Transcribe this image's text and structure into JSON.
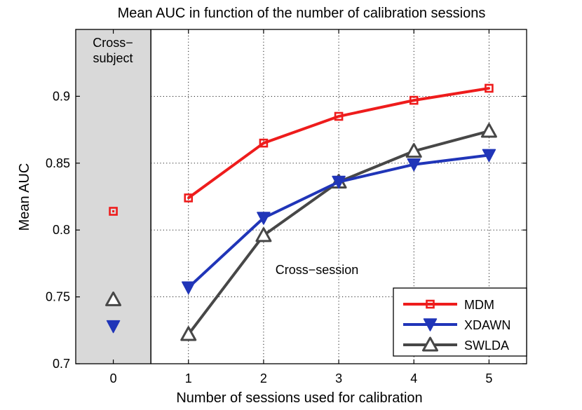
{
  "chart_data": {
    "type": "line",
    "title": "Mean AUC in function of the number of calibration sessions",
    "xlabel": "Number of sessions used for calibration",
    "ylabel": "Mean AUC",
    "xlim": [
      -0.5,
      5.5
    ],
    "ylim": [
      0.7,
      0.95
    ],
    "xticks": [
      0,
      1,
      2,
      3,
      4,
      5
    ],
    "yticks": [
      0.7,
      0.75,
      0.8,
      0.85,
      0.9
    ],
    "ytick_labels": [
      "0.7",
      "0.75",
      "0.8",
      "0.85",
      "0.9"
    ],
    "grid": true,
    "legend_position": "bottom-right",
    "cross_subject": {
      "label_line1": "Cross−",
      "label_line2": "subject",
      "x_range": [
        -0.5,
        0.5
      ],
      "shade_color": "#d9d9d9",
      "points": [
        {
          "series": "MDM",
          "x": 0,
          "y": 0.814
        },
        {
          "series": "SWLDA",
          "x": 0,
          "y": 0.748
        },
        {
          "series": "XDAWN",
          "x": 0,
          "y": 0.728
        }
      ]
    },
    "cross_session_label": "Cross−session",
    "series": [
      {
        "name": "MDM",
        "color": "#ee1c1c",
        "marker": "square",
        "x": [
          1,
          2,
          3,
          4,
          5
        ],
        "values": [
          0.824,
          0.865,
          0.885,
          0.897,
          0.906
        ]
      },
      {
        "name": "XDAWN",
        "color": "#2035b8",
        "marker": "triangle-down",
        "x": [
          1,
          2,
          3,
          4,
          5
        ],
        "values": [
          0.757,
          0.809,
          0.836,
          0.849,
          0.856
        ]
      },
      {
        "name": "SWLDA",
        "color": "#474747",
        "marker": "triangle-up",
        "x": [
          1,
          2,
          3,
          4,
          5
        ],
        "values": [
          0.722,
          0.796,
          0.836,
          0.859,
          0.874
        ]
      }
    ]
  }
}
